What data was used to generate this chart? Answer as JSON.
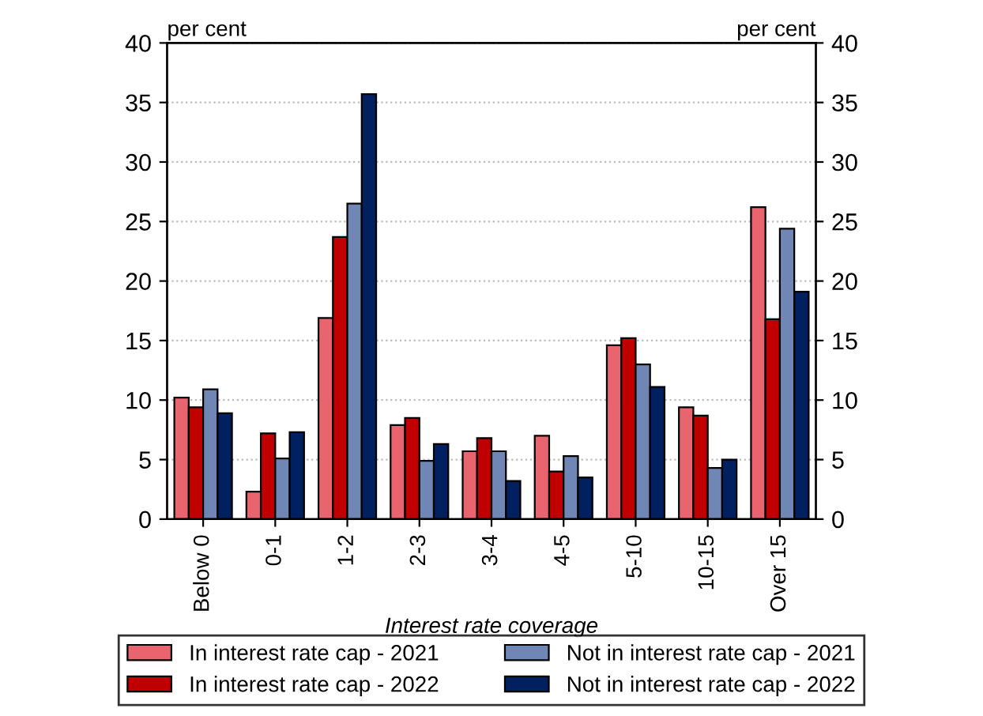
{
  "chart_data": {
    "type": "bar",
    "categories": [
      "Below 0",
      "0-1",
      "1-2",
      "2-3",
      "3-4",
      "4-5",
      "5-10",
      "10-15",
      "Over 15"
    ],
    "series": [
      {
        "name": "In interest rate cap - 2021",
        "color": "#e8646e",
        "values": [
          10.2,
          2.3,
          16.9,
          7.9,
          5.7,
          7.0,
          14.6,
          9.4,
          26.2
        ]
      },
      {
        "name": "In interest rate cap - 2022",
        "color": "#c00000",
        "values": [
          9.4,
          7.2,
          23.7,
          8.5,
          6.8,
          4.0,
          15.2,
          8.7,
          16.8
        ]
      },
      {
        "name": "Not in interest rate cap - 2021",
        "color": "#7086b4",
        "values": [
          10.9,
          5.1,
          26.5,
          4.9,
          5.7,
          5.3,
          13.0,
          4.3,
          24.4
        ]
      },
      {
        "name": "Not in interest rate cap - 2022",
        "color": "#002060",
        "values": [
          8.9,
          7.3,
          35.7,
          6.3,
          3.2,
          3.5,
          11.1,
          5.0,
          19.1
        ]
      }
    ],
    "xlabel": "Interest rate coverage",
    "ylabel": "per cent",
    "y2label": "per cent",
    "ylim": [
      0,
      40
    ],
    "yticks": [
      0,
      5,
      10,
      15,
      20,
      25,
      30,
      35,
      40
    ],
    "y2lim": [
      0,
      40
    ],
    "y2ticks": [
      0,
      5,
      10,
      15,
      20,
      25,
      30,
      35,
      40
    ],
    "grid": "y",
    "legend": "bottom"
  }
}
